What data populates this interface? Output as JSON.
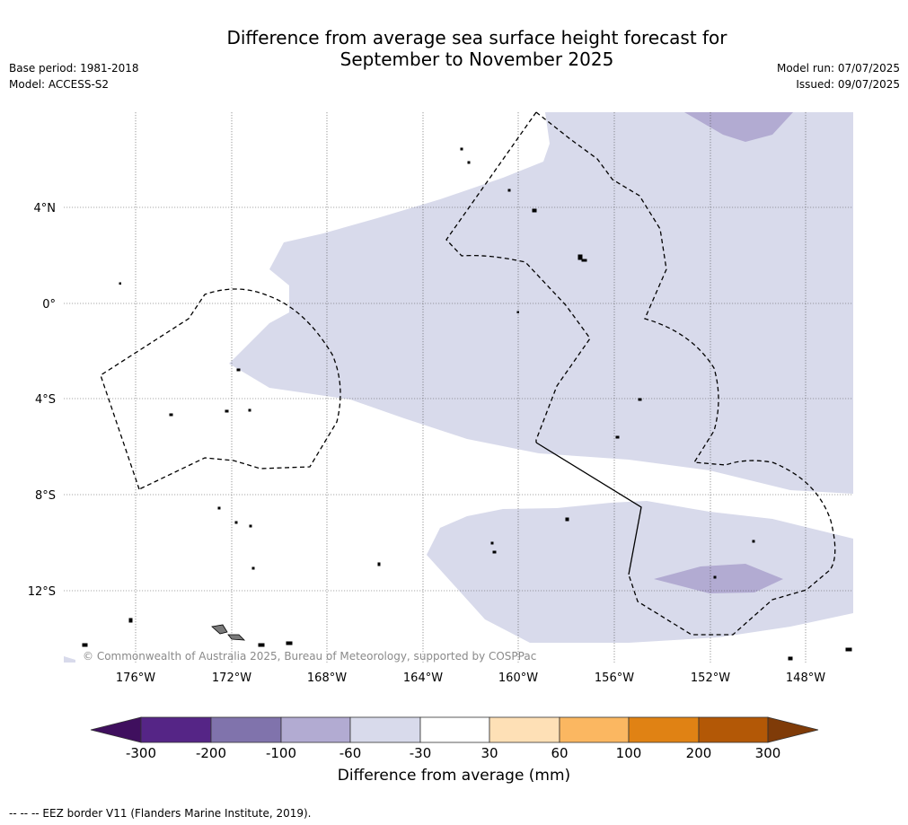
{
  "title": {
    "line1": "Difference from average sea surface height forecast for",
    "line2": "September to November 2025"
  },
  "meta_left": {
    "base_period": "Base period: 1981-2018",
    "model": "Model: ACCESS-S2"
  },
  "meta_right": {
    "model_run": "Model run: 07/07/2025",
    "issued": "Issued: 09/07/2025"
  },
  "map": {
    "lon_range": [
      -179,
      -146
    ],
    "lat_range": [
      -14.9,
      8
    ],
    "lon_ticks": [
      {
        "value": -176,
        "label": "176°W"
      },
      {
        "value": -172,
        "label": "172°W"
      },
      {
        "value": -168,
        "label": "168°W"
      },
      {
        "value": -164,
        "label": "164°W"
      },
      {
        "value": -160,
        "label": "160°W"
      },
      {
        "value": -156,
        "label": "156°W"
      },
      {
        "value": -152,
        "label": "152°W"
      },
      {
        "value": -148,
        "label": "148°W"
      }
    ],
    "lat_ticks": [
      {
        "value": 4,
        "label": "4°N"
      },
      {
        "value": 0,
        "label": "0°"
      },
      {
        "value": -4,
        "label": "4°S"
      },
      {
        "value": -8,
        "label": "8°S"
      },
      {
        "value": -12,
        "label": "12°S"
      }
    ],
    "grid": "dotted"
  },
  "copyright": "© Commonwealth of Australia 2025, Bureau of Meteorology, supported by COSPPac",
  "colorbar": {
    "label": "Difference from average (mm)",
    "ticks": [
      "-300",
      "-200",
      "-100",
      "-60",
      "-30",
      "30",
      "60",
      "100",
      "200",
      "300"
    ],
    "colors": [
      "#3f0f5e",
      "#552586",
      "#8073ac",
      "#b2abd2",
      "#d8daeb",
      "#ffffff",
      "#fee0b6",
      "#fbb761",
      "#e08214",
      "#b35806",
      "#7f3b08"
    ]
  },
  "footnote": "--  --  -- EEZ border V11 (Flanders Marine Institute, 2019)."
}
